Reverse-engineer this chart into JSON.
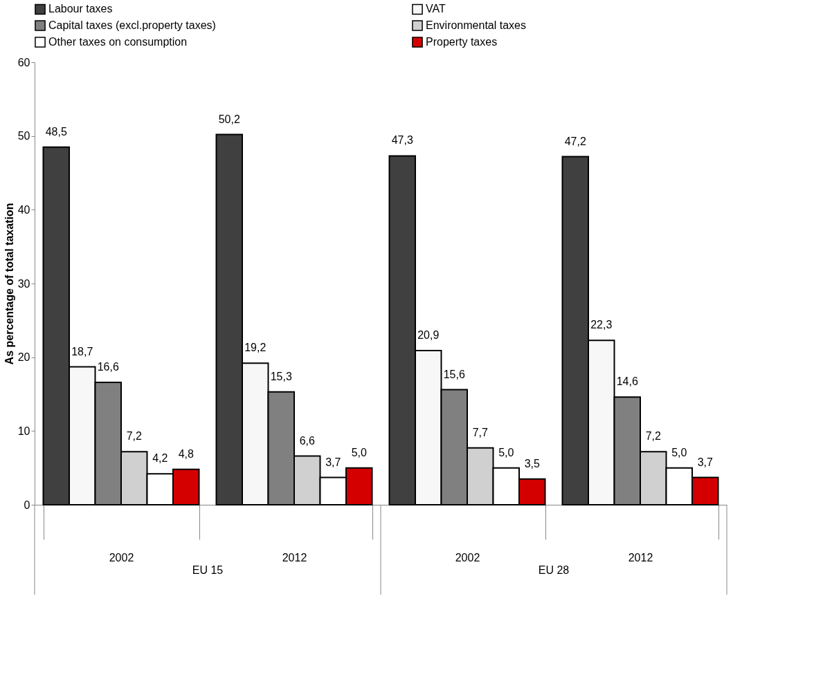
{
  "chart_data": {
    "type": "bar",
    "ylabel": "As percentage of total taxation",
    "categories": [
      "2002",
      "2012",
      "2002",
      "2012"
    ],
    "series": [
      {
        "name": "Labour taxes",
        "color": "#404040",
        "values": [
          48.5,
          50.2,
          47.3,
          47.2
        ],
        "value_labels": [
          "48,5",
          "50,2",
          "47,3",
          "47,2"
        ]
      },
      {
        "name": "VAT",
        "color": "#f7f7f7",
        "values": [
          18.7,
          19.2,
          20.9,
          22.3
        ],
        "value_labels": [
          "18,7",
          "19,2",
          "20,9",
          "22,3"
        ]
      },
      {
        "name": "Capital taxes (excl.property taxes)",
        "color": "#808080",
        "values": [
          16.6,
          15.3,
          15.6,
          14.6
        ],
        "value_labels": [
          "16,6",
          "15,3",
          "15,6",
          "14,6"
        ]
      },
      {
        "name": "Environmental taxes",
        "color": "#d0d0d0",
        "values": [
          7.2,
          6.6,
          7.7,
          7.2
        ],
        "value_labels": [
          "7,2",
          "6,6",
          "7,7",
          "7,2"
        ]
      },
      {
        "name": "Other taxes on consumption",
        "color": "#ffffff",
        "values": [
          4.2,
          3.7,
          5.0,
          5.0
        ],
        "value_labels": [
          "4,2",
          "3,7",
          "5,0",
          "5,0"
        ]
      },
      {
        "name": "Property taxes",
        "color": "#d40000",
        "values": [
          4.8,
          5.0,
          3.5,
          3.7
        ],
        "value_labels": [
          "4,8",
          "5,0",
          "3,5",
          "3,7"
        ]
      }
    ],
    "annotations": [
      "EU 15",
      "EU 28"
    ],
    "ylim": [
      0,
      60
    ],
    "yticks": [
      0,
      10,
      20,
      30,
      40,
      50,
      60
    ],
    "legend": "top"
  }
}
